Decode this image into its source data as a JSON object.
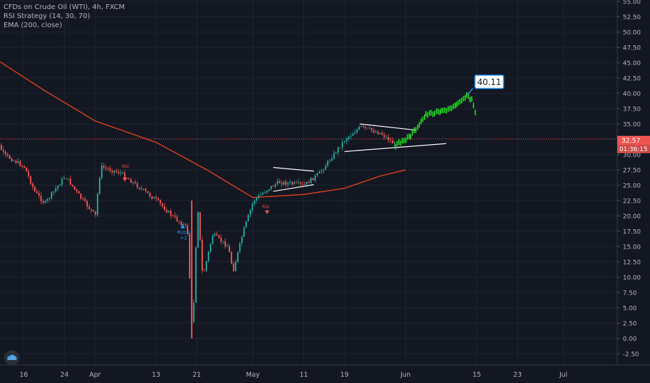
{
  "legend": {
    "symbol_line": "CFDs on Crude Oil (WTI), 4h, FXCM",
    "indicator_1": "RSI Strategy (14, 30, 70)",
    "indicator_2": "EMA (200, close)"
  },
  "price_axis": {
    "ticks": [
      "55.00",
      "52.50",
      "50.00",
      "47.50",
      "45.00",
      "42.50",
      "40.00",
      "37.50",
      "35.00",
      "30.00",
      "27.50",
      "25.00",
      "22.50",
      "20.00",
      "17.50",
      "15.00",
      "12.50",
      "10.00",
      "7.50",
      "5.00",
      "2.50",
      "0.00",
      "-2.50"
    ],
    "current_price_label": "32.57",
    "countdown_label": "01:36:15"
  },
  "time_axis": {
    "labels": [
      "16",
      "24",
      "Apr",
      "13",
      "21",
      "May",
      "11",
      "19",
      "Jun",
      "15",
      "23",
      "Jul"
    ]
  },
  "signals": {
    "short_entry_1": "RSI",
    "long_entry_label": "RULE",
    "long_entry_qty": "+2",
    "short_entry_2": "RSI"
  },
  "target_callout": "40.11",
  "colors": {
    "background": "#131722",
    "grid": "#1f2330",
    "up_candle": "#26a69a",
    "down_candle": "#ef5350",
    "ema": "#d2401e",
    "projection": "#22e51e",
    "price_line": "#ef5350",
    "callout_border": "#2196f3"
  },
  "chart_data": {
    "type": "candlestick",
    "title": "",
    "x": [
      "Mar 16",
      "Mar 24",
      "Apr 1",
      "Apr 13",
      "Apr 21",
      "May 1",
      "May 11",
      "May 19",
      "Jun 1",
      "Jun 15",
      "Jun 23",
      "Jul 1"
    ],
    "ylim": [
      -4.5,
      56
    ],
    "price_path": [
      {
        "date": "Mar 9",
        "price": 34.5
      },
      {
        "date": "Mar 12",
        "price": 30.0
      },
      {
        "date": "Mar 16",
        "price": 28.0
      },
      {
        "date": "Mar 18",
        "price": 24.0
      },
      {
        "date": "Mar 20",
        "price": 22.0
      },
      {
        "date": "Mar 24",
        "price": 26.5
      },
      {
        "date": "Mar 27",
        "price": 23.0
      },
      {
        "date": "Mar 30",
        "price": 20.0
      },
      {
        "date": "Apr 1",
        "price": 21.0
      },
      {
        "date": "Apr 2",
        "price": 28.0
      },
      {
        "date": "Apr 6",
        "price": 27.0
      },
      {
        "date": "Apr 9",
        "price": 25.0
      },
      {
        "date": "Apr 13",
        "price": 22.5
      },
      {
        "date": "Apr 16",
        "price": 20.0
      },
      {
        "date": "Apr 19",
        "price": 18.0
      },
      {
        "date": "Apr 20",
        "price": 0.0
      },
      {
        "date": "Apr 21",
        "price": 22.0
      },
      {
        "date": "Apr 22",
        "price": 10.0
      },
      {
        "date": "Apr 24",
        "price": 17.0
      },
      {
        "date": "Apr 27",
        "price": 15.0
      },
      {
        "date": "Apr 28",
        "price": 11.0
      },
      {
        "date": "Apr 30",
        "price": 17.5
      },
      {
        "date": "May 1",
        "price": 22.5
      },
      {
        "date": "May 4",
        "price": 24.5
      },
      {
        "date": "May 6",
        "price": 25.5
      },
      {
        "date": "May 11",
        "price": 25.0
      },
      {
        "date": "May 14",
        "price": 27.0
      },
      {
        "date": "May 19",
        "price": 32.5
      },
      {
        "date": "May 22",
        "price": 34.5
      },
      {
        "date": "May 26",
        "price": 33.5
      },
      {
        "date": "May 29",
        "price": 31.5
      }
    ],
    "series": [
      {
        "name": "EMA (200, close)",
        "values": [
          {
            "date": "Mar 6",
            "price": 48.0
          },
          {
            "date": "Mar 20",
            "price": 40.5
          },
          {
            "date": "Apr 1",
            "price": 35.5
          },
          {
            "date": "Apr 13",
            "price": 32.0
          },
          {
            "date": "Apr 23",
            "price": 27.5
          },
          {
            "date": "May 1",
            "price": 23.0
          },
          {
            "date": "May 11",
            "price": 23.5
          },
          {
            "date": "May 19",
            "price": 24.5
          },
          {
            "date": "May 26",
            "price": 26.5
          },
          {
            "date": "Jun 1",
            "price": 27.5
          }
        ]
      }
    ],
    "projection": [
      {
        "date": "May 29",
        "price": 31.5
      },
      {
        "date": "Jun 2",
        "price": 33.0
      },
      {
        "date": "Jun 5",
        "price": 36.5
      },
      {
        "date": "Jun 8",
        "price": 37.0
      },
      {
        "date": "Jun 11",
        "price": 38.0
      },
      {
        "date": "Jun 13",
        "price": 39.5
      },
      {
        "date": "Jun 14",
        "price": 39.0
      },
      {
        "date": "Jun 15",
        "price": 36.0
      }
    ],
    "current_price": 32.57,
    "target_price": 40.11,
    "trendlines": [
      {
        "from": {
          "date": "May 5",
          "price": 27.9
        },
        "to": {
          "date": "May 13",
          "price": 27.3
        }
      },
      {
        "from": {
          "date": "May 5",
          "price": 24.0
        },
        "to": {
          "date": "May 13",
          "price": 25.1
        }
      },
      {
        "from": {
          "date": "May 22",
          "price": 35.0
        },
        "to": {
          "date": "Jun 3",
          "price": 34.0
        }
      },
      {
        "from": {
          "date": "May 19",
          "price": 30.5
        },
        "to": {
          "date": "Jun 9",
          "price": 31.8
        }
      }
    ],
    "grid": true
  }
}
